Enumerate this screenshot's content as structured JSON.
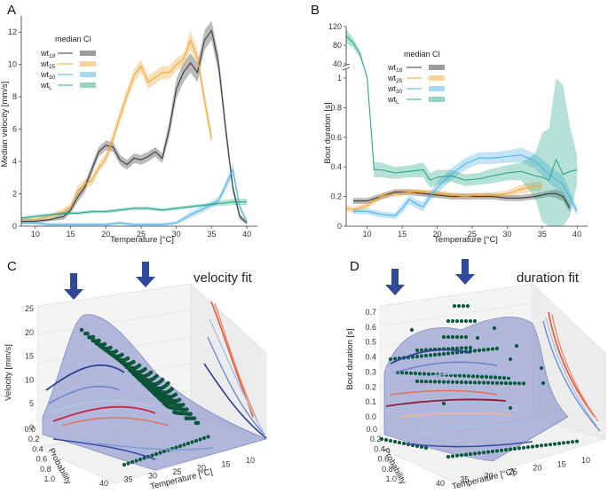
{
  "colors": {
    "wt18": "#3a3a3a",
    "wt25": "#f0a637",
    "wt30": "#4fb3e6",
    "wtL": "#2aa88a",
    "arrow": "#2f4a9a",
    "surface": "#7b86c8",
    "dot": "#0b5a3c"
  },
  "chart_data": [
    {
      "panel": "A",
      "type": "line",
      "xlabel": "Temperature [°C]",
      "ylabel": "Median velocity [mm/s]",
      "xlim": [
        8,
        41.5
      ],
      "ylim": [
        0,
        13
      ],
      "xticks": [
        "10",
        "15",
        "20",
        "25",
        "30",
        "35",
        "40"
      ],
      "yticks": [
        "0",
        "2",
        "4",
        "6",
        "8",
        "10",
        "12"
      ],
      "legend": {
        "header_median": "median",
        "header_ci": "CI",
        "entries": [
          {
            "label": "wt18",
            "base": "wt",
            "sub": "18"
          },
          {
            "label": "wt25",
            "base": "wt",
            "sub": "25"
          },
          {
            "label": "wt30",
            "base": "wt",
            "sub": "30"
          },
          {
            "label": "wtL",
            "base": "wt",
            "sub": "L"
          }
        ]
      },
      "series": [
        {
          "name": "wt18",
          "x": [
            8,
            10,
            12,
            14,
            15,
            16,
            17,
            18,
            19,
            20,
            21,
            22,
            23,
            24,
            25,
            26,
            27,
            28,
            29,
            30,
            31,
            32,
            33,
            34,
            35,
            36,
            37,
            38,
            39,
            40
          ],
          "values": [
            0.3,
            0.3,
            0.4,
            0.6,
            1.0,
            1.8,
            2.4,
            3.5,
            4.6,
            5.0,
            4.9,
            4.1,
            3.8,
            4.2,
            4.1,
            4.3,
            4.6,
            4.2,
            6.0,
            8.5,
            9.5,
            10.1,
            9.5,
            11.5,
            12.1,
            10.0,
            6.0,
            2.4,
            0.6,
            0.2
          ],
          "ci": [
            0.1,
            0.1,
            0.1,
            0.2,
            0.2,
            0.3,
            0.3,
            0.3,
            0.3,
            0.3,
            0.3,
            0.3,
            0.3,
            0.3,
            0.3,
            0.3,
            0.3,
            0.3,
            0.5,
            0.6,
            0.6,
            0.6,
            0.6,
            0.6,
            0.6,
            0.6,
            0.5,
            0.3,
            0.2,
            0.1
          ]
        },
        {
          "name": "wt25",
          "x": [
            8,
            10,
            12,
            14,
            15,
            16,
            17,
            18,
            19,
            20,
            21,
            22,
            23,
            24,
            25,
            26,
            27,
            28,
            29,
            30,
            31,
            32,
            33,
            34,
            35
          ],
          "values": [
            0.4,
            0.4,
            0.6,
            0.9,
            1.2,
            2.2,
            2.6,
            2.8,
            3.6,
            4.2,
            5.4,
            6.8,
            8.1,
            9.3,
            9.9,
            8.9,
            9.2,
            9.5,
            9.5,
            10.0,
            10.3,
            11.5,
            10.4,
            7.8,
            5.4
          ],
          "ci": [
            0.1,
            0.1,
            0.1,
            0.2,
            0.2,
            0.3,
            0.3,
            0.3,
            0.3,
            0.3,
            0.4,
            0.4,
            0.4,
            0.4,
            0.4,
            0.4,
            0.4,
            0.4,
            0.4,
            0.4,
            0.4,
            0.6,
            0.5,
            0.5,
            0.4
          ]
        },
        {
          "name": "wt30",
          "x": [
            8,
            10,
            12,
            14,
            16,
            18,
            20,
            22,
            24,
            26,
            28,
            30,
            32,
            34,
            36,
            37,
            38,
            39,
            40
          ],
          "values": [
            0.2,
            0.2,
            0.1,
            0.1,
            0.1,
            0.1,
            0.1,
            0.2,
            0.1,
            0.1,
            0.1,
            0.2,
            0.7,
            1.1,
            1.6,
            2.5,
            3.5,
            1.2,
            0.3
          ],
          "ci": [
            0.1,
            0.1,
            0.1,
            0.1,
            0.1,
            0.1,
            0.1,
            0.1,
            0.1,
            0.1,
            0.1,
            0.1,
            0.2,
            0.2,
            0.2,
            0.3,
            0.4,
            0.2,
            0.1
          ]
        },
        {
          "name": "wtL",
          "x": [
            8,
            10,
            12,
            14,
            16,
            18,
            20,
            22,
            24,
            26,
            28,
            30,
            32,
            34,
            36,
            38,
            40
          ],
          "values": [
            0.5,
            0.6,
            0.7,
            0.8,
            0.8,
            0.9,
            0.9,
            1.0,
            1.1,
            1.1,
            1.0,
            1.1,
            1.2,
            1.3,
            1.4,
            1.5,
            1.5
          ],
          "ci": [
            0.1,
            0.1,
            0.1,
            0.1,
            0.1,
            0.1,
            0.1,
            0.1,
            0.1,
            0.1,
            0.1,
            0.1,
            0.1,
            0.1,
            0.15,
            0.2,
            0.2
          ]
        }
      ]
    },
    {
      "panel": "B",
      "type": "line",
      "xlabel": "Temperature [°C]",
      "ylabel": "Bout duration [s]",
      "xlim": [
        7,
        41.5
      ],
      "ylim_lower": [
        0,
        1
      ],
      "ylim_upper": [
        40,
        120
      ],
      "xticks": [
        "10",
        "15",
        "20",
        "25",
        "30",
        "35",
        "40"
      ],
      "yticks_lower": [
        "0",
        "0.2",
        "0.4",
        "0.6",
        "0.8",
        "1"
      ],
      "yticks_upper": [
        "40",
        "80",
        "120"
      ],
      "legend": {
        "header_median": "median",
        "header_ci": "CI",
        "entries": [
          {
            "label": "wt18",
            "base": "wt",
            "sub": "18"
          },
          {
            "label": "wt25",
            "base": "wt",
            "sub": "25"
          },
          {
            "label": "wt30",
            "base": "wt",
            "sub": "30"
          },
          {
            "label": "wtL",
            "base": "wt",
            "sub": "L"
          }
        ]
      },
      "series": [
        {
          "name": "wt18",
          "x": [
            8,
            10,
            12,
            14,
            16,
            18,
            20,
            22,
            24,
            26,
            28,
            30,
            32,
            34,
            36,
            37,
            38,
            39
          ],
          "values": [
            0.17,
            0.17,
            0.2,
            0.23,
            0.23,
            0.22,
            0.21,
            0.2,
            0.2,
            0.2,
            0.2,
            0.19,
            0.19,
            0.2,
            0.22,
            0.22,
            0.2,
            0.12
          ],
          "ci": [
            0.02,
            0.02,
            0.02,
            0.02,
            0.02,
            0.02,
            0.02,
            0.02,
            0.02,
            0.02,
            0.02,
            0.02,
            0.02,
            0.02,
            0.02,
            0.03,
            0.03,
            0.03
          ]
        },
        {
          "name": "wt25",
          "x": [
            7,
            8,
            10,
            12,
            14,
            16,
            18,
            20,
            22,
            24,
            26,
            28,
            30,
            32,
            34,
            35
          ],
          "values": [
            0.12,
            0.11,
            0.14,
            0.2,
            0.22,
            0.23,
            0.23,
            0.22,
            0.21,
            0.2,
            0.21,
            0.21,
            0.22,
            0.25,
            0.27,
            0.27
          ],
          "ci": [
            0.02,
            0.02,
            0.02,
            0.02,
            0.02,
            0.02,
            0.02,
            0.02,
            0.02,
            0.02,
            0.02,
            0.02,
            0.02,
            0.03,
            0.03,
            0.03
          ]
        },
        {
          "name": "wt30",
          "x": [
            8,
            10,
            12,
            14,
            15,
            16,
            17,
            18,
            19,
            20,
            22,
            24,
            26,
            28,
            30,
            32,
            34,
            36,
            38,
            40
          ],
          "values": [
            0.1,
            0.1,
            0.08,
            0.07,
            0.12,
            0.18,
            0.15,
            0.13,
            0.2,
            0.26,
            0.35,
            0.42,
            0.46,
            0.46,
            0.47,
            0.48,
            0.44,
            0.35,
            0.28,
            0.1
          ],
          "ci": [
            0.02,
            0.02,
            0.02,
            0.02,
            0.03,
            0.03,
            0.03,
            0.03,
            0.03,
            0.04,
            0.04,
            0.04,
            0.04,
            0.04,
            0.04,
            0.05,
            0.05,
            0.06,
            0.06,
            0.03
          ]
        },
        {
          "name": "wtL",
          "x": [
            7,
            8,
            9,
            10,
            11,
            12,
            14,
            16,
            18,
            19,
            20,
            22,
            24,
            26,
            28,
            30,
            32,
            34,
            35,
            36,
            37,
            38,
            39,
            40
          ],
          "values": [
            100,
            85,
            60,
            1.0,
            0.38,
            0.38,
            0.36,
            0.37,
            0.38,
            0.31,
            0.33,
            0.34,
            0.31,
            0.32,
            0.34,
            0.36,
            0.37,
            0.34,
            0.33,
            0.31,
            0.45,
            0.35,
            0.37,
            0.38
          ],
          "ci": [
            15,
            10,
            8,
            0,
            0.05,
            0.05,
            0.04,
            0.04,
            0.05,
            0.05,
            0.05,
            0.04,
            0.04,
            0.04,
            0.05,
            0.05,
            0.06,
            0.15,
            0.3,
            0.35,
            0.6,
            0.6,
            0.3,
            0.1
          ]
        }
      ]
    },
    {
      "panel": "C",
      "type": "scatter",
      "title": "velocity fit",
      "zlabel": "Velocity [mm/s]",
      "xlabel": "Temperature [°C]",
      "ylabel": "Probability",
      "zticks": [
        "0",
        "5",
        "10",
        "15",
        "20",
        "25"
      ],
      "temperature_ticks": [
        "40",
        "35",
        "30",
        "25",
        "20",
        "15",
        "10"
      ],
      "probability_ticks": [
        "0.0",
        "0.2",
        "0.4",
        "0.6",
        "0.8",
        "1.0"
      ],
      "xlim": [
        8,
        40
      ],
      "ylim": [
        0,
        1
      ],
      "zlim": [
        0,
        25
      ]
    },
    {
      "panel": "D",
      "type": "scatter",
      "title": "duration fit",
      "zlabel": "Bout duration [s]",
      "xlabel": "Temperature [°C]",
      "ylabel": "Probability",
      "zticks": [
        "0.0",
        "0.1",
        "0.2",
        "0.3",
        "0.4",
        "0.5",
        "0.6",
        "0.7"
      ],
      "temperature_ticks": [
        "40",
        "35",
        "30",
        "25",
        "20",
        "15",
        "10"
      ],
      "probability_ticks": [
        "0.0",
        "0.2",
        "0.4",
        "0.6",
        "0.8",
        "1.0"
      ],
      "xlim": [
        8,
        40
      ],
      "ylim": [
        0,
        1
      ],
      "zlim": [
        0,
        0.7
      ]
    }
  ]
}
